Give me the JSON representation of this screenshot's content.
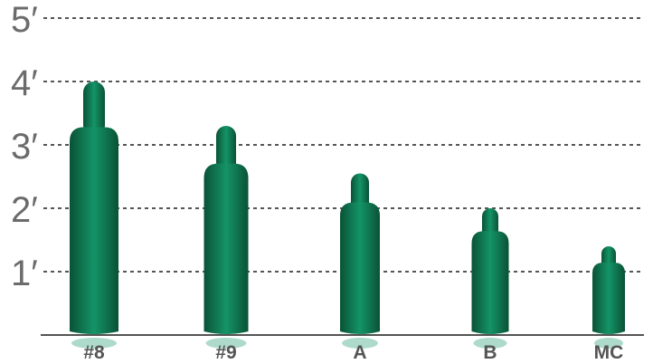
{
  "chart_data": {
    "type": "bar",
    "categories": [
      "#8",
      "#9",
      "A",
      "B",
      "MC"
    ],
    "values": [
      4.0,
      3.3,
      2.55,
      2.0,
      1.4
    ],
    "ylim": [
      0,
      5
    ],
    "yticks": [
      1,
      2,
      3,
      4,
      5
    ],
    "ytick_labels": [
      "1′",
      "2′",
      "3′",
      "4′",
      "5′"
    ],
    "grid": true,
    "colors": {
      "bar_light": "#149468",
      "bar_dark": "#0a5236",
      "grid": "#555555",
      "axis": "#555555",
      "label": "#555555",
      "tick": "#6b6b6b"
    }
  }
}
